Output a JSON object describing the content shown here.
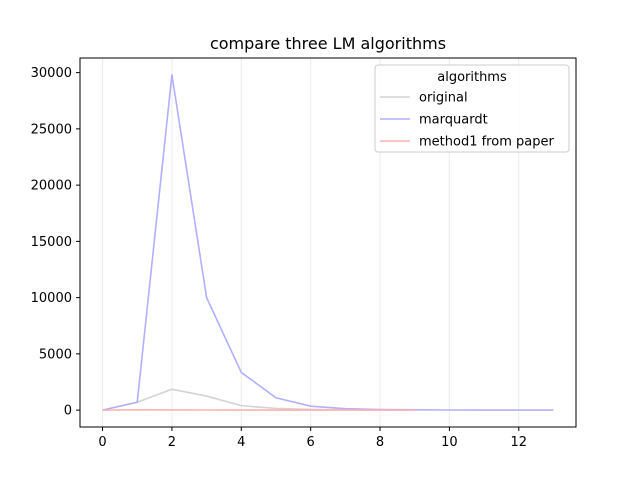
{
  "chart_data": {
    "type": "line",
    "title": "compare three LM algorithms",
    "xlabel": "",
    "ylabel": "",
    "xlim": [
      -0.65,
      13.65
    ],
    "ylim": [
      -1500,
      31300
    ],
    "xticks": [
      0,
      2,
      4,
      6,
      8,
      10,
      12
    ],
    "yticks": [
      0,
      5000,
      10000,
      15000,
      20000,
      25000,
      30000
    ],
    "grid": "vertical lines only, faint",
    "legend": {
      "title": "algorithms",
      "placement": "top-right"
    },
    "series": [
      {
        "name": "original",
        "color": "#d3d3d3",
        "x": [
          0,
          1,
          2,
          3,
          4,
          5,
          6,
          7,
          8,
          9
        ],
        "y": [
          0,
          700,
          1850,
          1250,
          400,
          150,
          60,
          30,
          15,
          10
        ]
      },
      {
        "name": "marquardt",
        "color": "#b0b0ff",
        "x": [
          0,
          1,
          2,
          3,
          4,
          5,
          6,
          7,
          8,
          9,
          10,
          11,
          12,
          13
        ],
        "y": [
          0,
          700,
          29800,
          10000,
          3350,
          1100,
          350,
          130,
          50,
          25,
          12,
          8,
          5,
          3
        ]
      },
      {
        "name": "method1 from paper",
        "color": "#ffb0b0",
        "x": [
          0,
          1,
          2,
          3,
          4,
          5,
          6,
          7,
          8,
          9
        ],
        "y": [
          0,
          30,
          20,
          10,
          5,
          3,
          2,
          1,
          1,
          0
        ]
      }
    ]
  }
}
